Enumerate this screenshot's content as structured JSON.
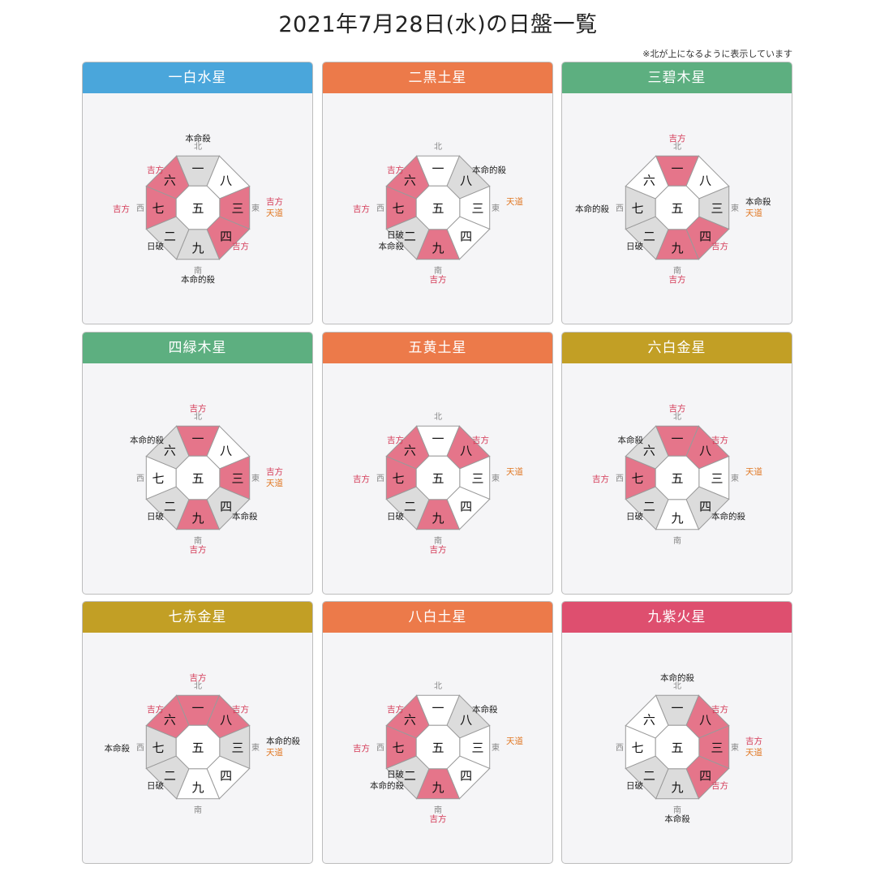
{
  "title": "2021年7月28日(水)の日盤一覧",
  "note": "※北が上になるように表示しています",
  "colors": {
    "blue": "#4aa6db",
    "orange": "#ec7a4a",
    "green": "#5daf80",
    "gold": "#c29f25",
    "red": "#de4f6f",
    "segment_lucky": "#e5758a",
    "segment_gray": "#dcdcdc",
    "segment_plain": "#ffffff",
    "label_lucky": "#d53b58",
    "label_tendo": "#e0751f",
    "label_normal": "#222222"
  },
  "directions": {
    "n": "北",
    "s": "南",
    "e": "東",
    "w": "西"
  },
  "cards": [
    {
      "title": "一白水星",
      "color": "blue",
      "center": "五",
      "numbers": {
        "n": "一",
        "ne": "八",
        "e": "三",
        "se": "四",
        "s": "九",
        "sw": "二",
        "w": "七",
        "nw": "六"
      },
      "fills": {
        "n": "gray",
        "ne": "plain",
        "e": "lucky",
        "se": "lucky",
        "s": "gray",
        "sw": "gray",
        "w": "lucky",
        "nw": "lucky"
      },
      "labels": {
        "n": [
          {
            "text": "本命殺",
            "type": "normal"
          }
        ],
        "nw": [
          {
            "text": "吉方",
            "type": "lucky"
          }
        ],
        "w": [
          {
            "text": "吉方",
            "type": "lucky"
          }
        ],
        "e": [
          {
            "text": "吉方",
            "type": "lucky"
          },
          {
            "text": "天道",
            "type": "tendo"
          }
        ],
        "se": [
          {
            "text": "吉方",
            "type": "lucky"
          }
        ],
        "sw": [
          {
            "text": "日破",
            "type": "normal"
          }
        ],
        "s": [
          {
            "text": "本命的殺",
            "type": "normal"
          }
        ]
      }
    },
    {
      "title": "二黒土星",
      "color": "orange",
      "center": "五",
      "numbers": {
        "n": "一",
        "ne": "八",
        "e": "三",
        "se": "四",
        "s": "九",
        "sw": "二",
        "w": "七",
        "nw": "六"
      },
      "fills": {
        "n": "plain",
        "ne": "gray",
        "e": "plain",
        "se": "plain",
        "s": "lucky",
        "sw": "gray",
        "w": "lucky",
        "nw": "lucky"
      },
      "labels": {
        "nw": [
          {
            "text": "吉方",
            "type": "lucky"
          }
        ],
        "ne": [
          {
            "text": "本命的殺",
            "type": "normal"
          }
        ],
        "w": [
          {
            "text": "吉方",
            "type": "lucky"
          }
        ],
        "e": [
          {
            "text": "天道",
            "type": "tendo"
          }
        ],
        "sw": [
          {
            "text": "日破",
            "type": "normal"
          },
          {
            "text": "本命殺",
            "type": "normal"
          }
        ],
        "s": [
          {
            "text": "吉方",
            "type": "lucky"
          }
        ]
      }
    },
    {
      "title": "三碧木星",
      "color": "green",
      "center": "五",
      "numbers": {
        "n": "一",
        "ne": "八",
        "e": "三",
        "se": "四",
        "s": "九",
        "sw": "二",
        "w": "七",
        "nw": "六"
      },
      "fills": {
        "n": "lucky",
        "ne": "plain",
        "e": "gray",
        "se": "lucky",
        "s": "lucky",
        "sw": "gray",
        "w": "gray",
        "nw": "plain"
      },
      "labels": {
        "n": [
          {
            "text": "吉方",
            "type": "lucky"
          }
        ],
        "w": [
          {
            "text": "本命的殺",
            "type": "normal"
          }
        ],
        "e": [
          {
            "text": "本命殺",
            "type": "normal"
          },
          {
            "text": "天道",
            "type": "tendo"
          }
        ],
        "se": [
          {
            "text": "吉方",
            "type": "lucky"
          }
        ],
        "sw": [
          {
            "text": "日破",
            "type": "normal"
          }
        ],
        "s": [
          {
            "text": "吉方",
            "type": "lucky"
          }
        ]
      }
    },
    {
      "title": "四緑木星",
      "color": "green",
      "center": "五",
      "numbers": {
        "n": "一",
        "ne": "八",
        "e": "三",
        "se": "四",
        "s": "九",
        "sw": "二",
        "w": "七",
        "nw": "六"
      },
      "fills": {
        "n": "lucky",
        "ne": "plain",
        "e": "lucky",
        "se": "gray",
        "s": "lucky",
        "sw": "gray",
        "w": "plain",
        "nw": "gray"
      },
      "labels": {
        "n": [
          {
            "text": "吉方",
            "type": "lucky"
          }
        ],
        "nw": [
          {
            "text": "本命的殺",
            "type": "normal"
          }
        ],
        "e": [
          {
            "text": "吉方",
            "type": "lucky"
          },
          {
            "text": "天道",
            "type": "tendo"
          }
        ],
        "se": [
          {
            "text": "本命殺",
            "type": "normal"
          }
        ],
        "sw": [
          {
            "text": "日破",
            "type": "normal"
          }
        ],
        "s": [
          {
            "text": "吉方",
            "type": "lucky"
          }
        ]
      }
    },
    {
      "title": "五黄土星",
      "color": "orange",
      "center": "五",
      "numbers": {
        "n": "一",
        "ne": "八",
        "e": "三",
        "se": "四",
        "s": "九",
        "sw": "二",
        "w": "七",
        "nw": "六"
      },
      "fills": {
        "n": "plain",
        "ne": "lucky",
        "e": "plain",
        "se": "plain",
        "s": "lucky",
        "sw": "gray",
        "w": "lucky",
        "nw": "lucky"
      },
      "labels": {
        "nw": [
          {
            "text": "吉方",
            "type": "lucky"
          }
        ],
        "ne": [
          {
            "text": "吉方",
            "type": "lucky"
          }
        ],
        "w": [
          {
            "text": "吉方",
            "type": "lucky"
          }
        ],
        "e": [
          {
            "text": "天道",
            "type": "tendo"
          }
        ],
        "sw": [
          {
            "text": "日破",
            "type": "normal"
          }
        ],
        "s": [
          {
            "text": "吉方",
            "type": "lucky"
          }
        ]
      }
    },
    {
      "title": "六白金星",
      "color": "gold",
      "center": "五",
      "numbers": {
        "n": "一",
        "ne": "八",
        "e": "三",
        "se": "四",
        "s": "九",
        "sw": "二",
        "w": "七",
        "nw": "六"
      },
      "fills": {
        "n": "lucky",
        "ne": "lucky",
        "e": "plain",
        "se": "gray",
        "s": "plain",
        "sw": "gray",
        "w": "lucky",
        "nw": "gray"
      },
      "labels": {
        "n": [
          {
            "text": "吉方",
            "type": "lucky"
          }
        ],
        "nw": [
          {
            "text": "本命殺",
            "type": "normal"
          }
        ],
        "ne": [
          {
            "text": "吉方",
            "type": "lucky"
          }
        ],
        "w": [
          {
            "text": "吉方",
            "type": "lucky"
          }
        ],
        "e": [
          {
            "text": "天道",
            "type": "tendo"
          }
        ],
        "se": [
          {
            "text": "本命的殺",
            "type": "normal"
          }
        ],
        "sw": [
          {
            "text": "日破",
            "type": "normal"
          }
        ]
      }
    },
    {
      "title": "七赤金星",
      "color": "gold",
      "center": "五",
      "numbers": {
        "n": "一",
        "ne": "八",
        "e": "三",
        "se": "四",
        "s": "九",
        "sw": "二",
        "w": "七",
        "nw": "六"
      },
      "fills": {
        "n": "lucky",
        "ne": "lucky",
        "e": "gray",
        "se": "plain",
        "s": "plain",
        "sw": "gray",
        "w": "gray",
        "nw": "lucky"
      },
      "labels": {
        "n": [
          {
            "text": "吉方",
            "type": "lucky"
          }
        ],
        "nw": [
          {
            "text": "吉方",
            "type": "lucky"
          }
        ],
        "ne": [
          {
            "text": "吉方",
            "type": "lucky"
          }
        ],
        "w": [
          {
            "text": "本命殺",
            "type": "normal"
          }
        ],
        "e": [
          {
            "text": "本命的殺",
            "type": "normal"
          },
          {
            "text": "天道",
            "type": "tendo"
          }
        ],
        "sw": [
          {
            "text": "日破",
            "type": "normal"
          }
        ]
      }
    },
    {
      "title": "八白土星",
      "color": "orange",
      "center": "五",
      "numbers": {
        "n": "一",
        "ne": "八",
        "e": "三",
        "se": "四",
        "s": "九",
        "sw": "二",
        "w": "七",
        "nw": "六"
      },
      "fills": {
        "n": "plain",
        "ne": "gray",
        "e": "plain",
        "se": "plain",
        "s": "lucky",
        "sw": "gray",
        "w": "lucky",
        "nw": "lucky"
      },
      "labels": {
        "nw": [
          {
            "text": "吉方",
            "type": "lucky"
          }
        ],
        "ne": [
          {
            "text": "本命殺",
            "type": "normal"
          }
        ],
        "w": [
          {
            "text": "吉方",
            "type": "lucky"
          }
        ],
        "e": [
          {
            "text": "天道",
            "type": "tendo"
          }
        ],
        "sw": [
          {
            "text": "日破",
            "type": "normal"
          },
          {
            "text": "本命的殺",
            "type": "normal"
          }
        ],
        "s": [
          {
            "text": "吉方",
            "type": "lucky"
          }
        ]
      }
    },
    {
      "title": "九紫火星",
      "color": "red",
      "center": "五",
      "numbers": {
        "n": "一",
        "ne": "八",
        "e": "三",
        "se": "四",
        "s": "九",
        "sw": "二",
        "w": "七",
        "nw": "六"
      },
      "fills": {
        "n": "gray",
        "ne": "lucky",
        "e": "lucky",
        "se": "lucky",
        "s": "gray",
        "sw": "gray",
        "w": "plain",
        "nw": "plain"
      },
      "labels": {
        "n": [
          {
            "text": "本命的殺",
            "type": "normal"
          }
        ],
        "ne": [
          {
            "text": "吉方",
            "type": "lucky"
          }
        ],
        "e": [
          {
            "text": "吉方",
            "type": "lucky"
          },
          {
            "text": "天道",
            "type": "tendo"
          }
        ],
        "se": [
          {
            "text": "吉方",
            "type": "lucky"
          }
        ],
        "sw": [
          {
            "text": "日破",
            "type": "normal"
          }
        ],
        "s": [
          {
            "text": "本命殺",
            "type": "normal"
          }
        ]
      }
    }
  ]
}
